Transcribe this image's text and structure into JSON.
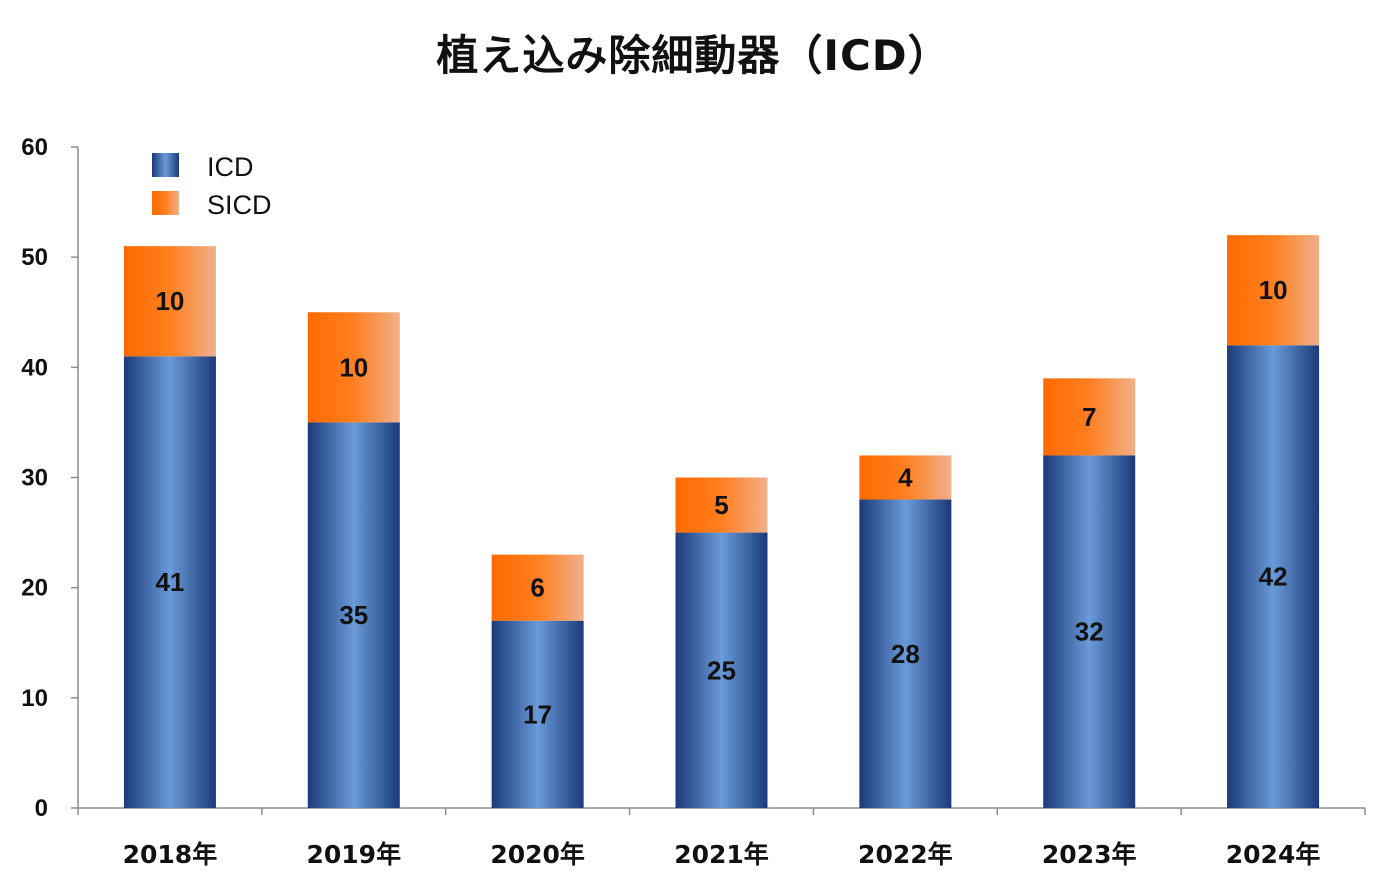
{
  "chart_data": {
    "type": "bar",
    "stacked": true,
    "title": "植え込み除細動器（ICD）",
    "categories": [
      "2018年",
      "2019年",
      "2020年",
      "2021年",
      "2022年",
      "2023年",
      "2024年"
    ],
    "series": [
      {
        "name": "ICD",
        "values": [
          41,
          35,
          17,
          25,
          28,
          32,
          42
        ],
        "color": "#2E57A3"
      },
      {
        "name": "SICD",
        "values": [
          10,
          10,
          6,
          5,
          4,
          7,
          10
        ],
        "color": "#FF6E0E"
      }
    ],
    "ylim": [
      0,
      60
    ],
    "yticks": [
      0,
      10,
      20,
      30,
      40,
      50,
      60
    ],
    "xlabel": "",
    "ylabel": "",
    "grid": false,
    "legend": "top-left",
    "data_labels": true
  }
}
